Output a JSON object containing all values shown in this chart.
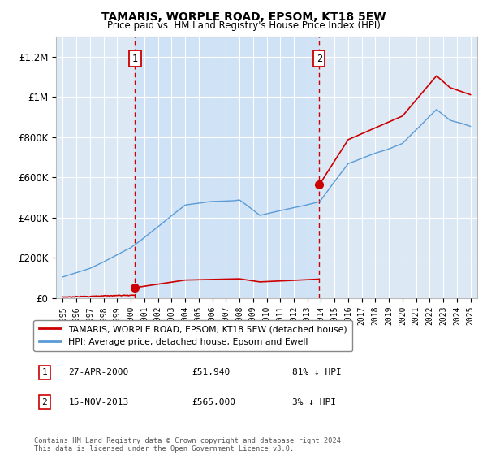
{
  "title": "TAMARIS, WORPLE ROAD, EPSOM, KT18 5EW",
  "subtitle": "Price paid vs. HM Land Registry's House Price Index (HPI)",
  "plot_bg_color": "#dce9f5",
  "ylim": [
    0,
    1300000
  ],
  "xlim_start": 1994.5,
  "xlim_end": 2025.5,
  "yticks": [
    0,
    200000,
    400000,
    600000,
    800000,
    1000000,
    1200000
  ],
  "ytick_labels": [
    "£0",
    "£200K",
    "£400K",
    "£600K",
    "£800K",
    "£1M",
    "£1.2M"
  ],
  "transaction1_x": 2000.32,
  "transaction1_y": 51940,
  "transaction2_x": 2013.87,
  "transaction2_y": 565000,
  "transaction1_date": "27-APR-2000",
  "transaction1_price": "£51,940",
  "transaction1_hpi": "81% ↓ HPI",
  "transaction2_date": "15-NOV-2013",
  "transaction2_price": "£565,000",
  "transaction2_hpi": "3% ↓ HPI",
  "line_color_property": "#cc0000",
  "line_color_hpi": "#5b9bd5",
  "shade_color": "#cce0f5",
  "legend_label_property": "TAMARIS, WORPLE ROAD, EPSOM, KT18 5EW (detached house)",
  "legend_label_hpi": "HPI: Average price, detached house, Epsom and Ewell",
  "footnote_line1": "Contains HM Land Registry data © Crown copyright and database right 2024.",
  "footnote_line2": "This data is licensed under the Open Government Licence v3.0.",
  "xticks": [
    1995,
    1996,
    1997,
    1998,
    1999,
    2000,
    2001,
    2002,
    2003,
    2004,
    2005,
    2006,
    2007,
    2008,
    2009,
    2010,
    2011,
    2012,
    2013,
    2014,
    2015,
    2016,
    2017,
    2018,
    2019,
    2020,
    2021,
    2022,
    2023,
    2024,
    2025
  ]
}
